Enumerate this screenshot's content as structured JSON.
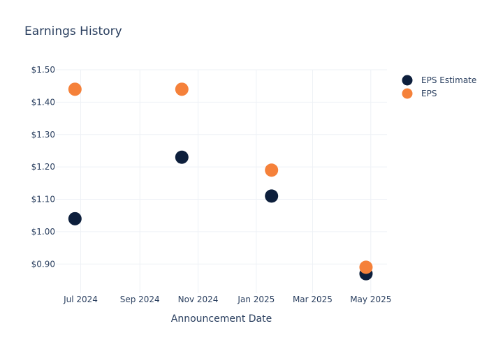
{
  "chart_data": {
    "type": "scatter",
    "title": "Earnings History",
    "xlabel": "Announcement Date",
    "ylabel": "",
    "x_ticks": [
      {
        "date": "2024-07-01",
        "label": "Jul 2024"
      },
      {
        "date": "2024-09-01",
        "label": "Sep 2024"
      },
      {
        "date": "2024-11-01",
        "label": "Nov 2024"
      },
      {
        "date": "2025-01-01",
        "label": "Jan 2025"
      },
      {
        "date": "2025-03-01",
        "label": "Mar 2025"
      },
      {
        "date": "2025-05-01",
        "label": "May 2025"
      }
    ],
    "y_ticks": [
      {
        "value": 0.9,
        "label": "$0.90"
      },
      {
        "value": 1.0,
        "label": "$1.00"
      },
      {
        "value": 1.1,
        "label": "$1.10"
      },
      {
        "value": 1.2,
        "label": "$1.20"
      },
      {
        "value": 1.3,
        "label": "$1.30"
      },
      {
        "value": 1.4,
        "label": "$1.40"
      },
      {
        "value": 1.5,
        "label": "$1.50"
      }
    ],
    "xlim": [
      "2024-06-05",
      "2025-05-18"
    ],
    "ylim": [
      0.81,
      1.5
    ],
    "grid": true,
    "legend_position": "top-right",
    "series": [
      {
        "name": "EPS Estimate",
        "color": "#0d1f3c",
        "points": [
          {
            "x": "2024-06-25",
            "y": 1.04
          },
          {
            "x": "2024-10-15",
            "y": 1.23
          },
          {
            "x": "2025-01-17",
            "y": 1.11
          },
          {
            "x": "2025-04-26",
            "y": 0.87
          }
        ]
      },
      {
        "name": "EPS",
        "color": "#f5813a",
        "points": [
          {
            "x": "2024-06-25",
            "y": 1.44
          },
          {
            "x": "2024-10-15",
            "y": 1.44
          },
          {
            "x": "2025-01-17",
            "y": 1.19
          },
          {
            "x": "2025-04-26",
            "y": 0.89
          }
        ]
      }
    ]
  }
}
